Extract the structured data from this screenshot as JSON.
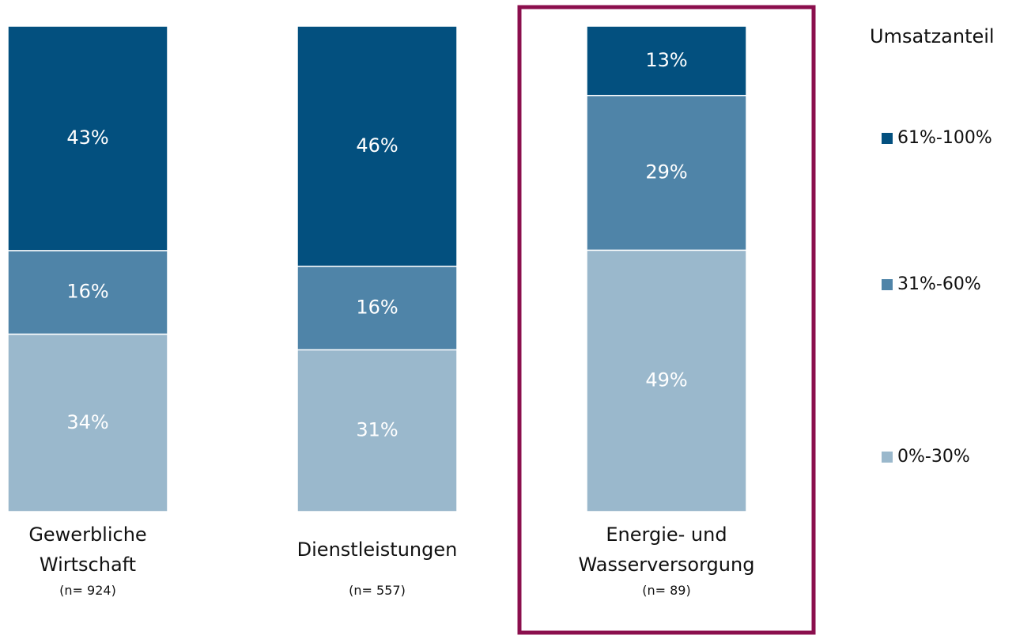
{
  "chart_data": {
    "type": "stacked_bar",
    "categories": [
      "Gewerbliche Wirtschaft",
      "Dienstleistungen",
      "Energie- und Wasserversorgung"
    ],
    "notes": [
      "(n= 924)",
      "(n= 557)",
      "(n= 89)"
    ],
    "series": [
      {
        "name": "0%-30%",
        "color": "#9ab8cc",
        "values": [
          34,
          31,
          49
        ],
        "value_labels": [
          "34%",
          "31%",
          "49%"
        ]
      },
      {
        "name": "31%-60%",
        "color": "#4f84a8",
        "values": [
          16,
          16,
          29
        ],
        "value_labels": [
          "16%",
          "16%",
          "29%"
        ]
      },
      {
        "name": "61%-100%",
        "color": "#03507f",
        "values": [
          43,
          46,
          13
        ],
        "value_labels": [
          "43%",
          "46%",
          "13%"
        ]
      }
    ],
    "legend_title": "Umsatzanteil",
    "legend": "right",
    "highlight": 2,
    "highlight_color": "#8b0f4d"
  }
}
